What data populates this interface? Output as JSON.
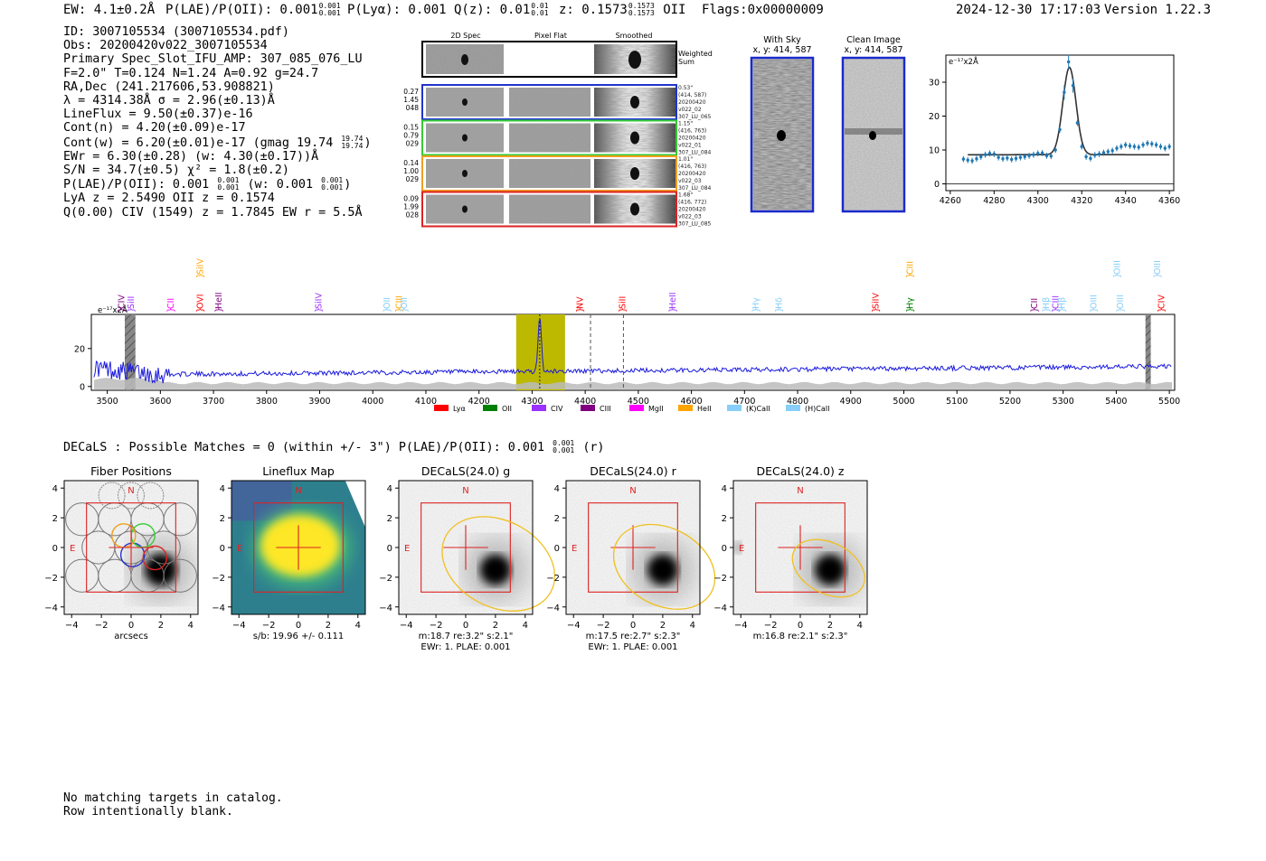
{
  "header": {
    "ew": "EW: 4.1±0.2Å",
    "plae_label": "P(LAE)/P(OII): 0.001",
    "plae_sup": "0.001",
    "plae_sub": "0.001",
    "plya": "P(Lyα): 0.001",
    "qz_label": "Q(z): 0.01",
    "qz_sup": "0.01",
    "qz_sub": "0.01",
    "z_label": "z: 0.1573",
    "z_sup": "0.1573",
    "z_sub": "0.1573",
    "z_line": "OII",
    "flags": "Flags:0x00000009",
    "timestamp": "2024-12-30 17:17:03",
    "version": "Version 1.22.3"
  },
  "info": {
    "id": "ID: 3007105534 (3007105534.pdf)",
    "obs": "Obs: 20200420v022_3007105534",
    "primary": "Primary Spec_Slot_IFU_AMP: 307_085_076_LU",
    "params": "F=2.0\"  T=0.124  N=1.24  A=0.92  g=24.7",
    "radec": "RA,Dec (241.217606,53.908821)",
    "lambda": "λ = 4314.38Å  σ = 2.96(±0.13)Å",
    "lineflux": "LineFlux = 9.50(±0.37)e-16",
    "contn": "Cont(n) = 4.20(±0.09)e-17",
    "contw": "Cont(w) = 6.20(±0.01)e-17 (gmag 19.74",
    "contw_sup": "19.74",
    "contw_sub": "19.74",
    "contw_end": ")",
    "ewr": "EWr = 6.30(±0.28) (w: 4.30(±0.17))Å",
    "sn": "S/N = 34.7(±0.5)  χ² = 1.8(±0.2)",
    "plae_a": "P(LAE)/P(OII): 0.001",
    "plae_a_sup": "0.001",
    "plae_a_sub": "0.001",
    "plae_b": "(w: 0.001",
    "plae_b_sup": "0.001",
    "plae_b_sub": "0.001",
    "plae_end": ")",
    "lya": "LyA z = 2.5490  OII z = 0.1574",
    "civ": "Q(0.00) CIV (1549) z = 1.7845  EW r = 5.5Å"
  },
  "cutouts": {
    "col_labels": [
      "2D Spec",
      "Pixel Flat",
      "Smoothed"
    ],
    "weighted_sum": [
      "Weighted",
      "Sum"
    ],
    "rows": [
      {
        "left": [
          "0.27",
          "1.45",
          "048"
        ],
        "right": [
          "0.53\"",
          "(414, 587)",
          "20200420",
          "v022_02",
          "307_LU_065"
        ],
        "color": "#2233cc"
      },
      {
        "left": [
          "0.15",
          "0.79",
          "029"
        ],
        "right": [
          "1.15\"",
          "(416, 763)",
          "20200420",
          "v022_01",
          "307_LU_084"
        ],
        "color": "#33cc33"
      },
      {
        "left": [
          "0.14",
          "1.00",
          "029"
        ],
        "right": [
          "1.01\"",
          "(416, 763)",
          "20200420",
          "v022_03",
          "307_LU_084"
        ],
        "color": "#f0a020"
      },
      {
        "left": [
          "0.09",
          "1.99",
          "028"
        ],
        "right": [
          "1.68\"",
          "(416, 772)",
          "20200420",
          "v022_03",
          "307_LU_085"
        ],
        "color": "#dd2222"
      }
    ],
    "with_sky": [
      "With Sky",
      "x, y: 414, 587"
    ],
    "clean": [
      "Clean Image",
      "x, y: 414, 587"
    ]
  },
  "chart_data": [
    {
      "type": "line",
      "title": "",
      "ylabel": "e⁻¹⁷x2Å",
      "xlim": [
        4258,
        4362
      ],
      "ylim": [
        -2,
        38
      ],
      "xticks": [
        4260,
        4280,
        4300,
        4320,
        4340,
        4360
      ],
      "yticks": [
        0,
        10,
        20,
        30
      ],
      "data_points": {
        "x": [
          4266,
          4268,
          4270,
          4272,
          4274,
          4276,
          4278,
          4280,
          4282,
          4284,
          4286,
          4288,
          4290,
          4292,
          4294,
          4296,
          4298,
          4300,
          4302,
          4304,
          4306,
          4308,
          4310,
          4312,
          4314,
          4316,
          4318,
          4320,
          4322,
          4324,
          4326,
          4328,
          4330,
          4332,
          4334,
          4336,
          4338,
          4340,
          4342,
          4344,
          4346,
          4348,
          4350,
          4352,
          4354,
          4356,
          4358,
          4360
        ],
        "y": [
          7.3,
          7,
          6.8,
          7.4,
          8,
          8.6,
          9,
          8.8,
          7.8,
          7.4,
          7.6,
          7.2,
          7.5,
          7.8,
          8,
          8.3,
          8.6,
          9,
          9.1,
          8.3,
          8.2,
          10,
          16,
          27,
          36,
          29,
          18,
          11,
          8,
          7.5,
          8.5,
          8.8,
          9.2,
          9.5,
          9.8,
          10.5,
          11,
          11.5,
          11.2,
          11,
          10.8,
          11.5,
          12,
          11.8,
          11.5,
          11,
          10.5,
          11
        ]
      },
      "fit_model": {
        "center": 4314.38,
        "sigma": 2.96,
        "peak": 34.4,
        "baseline": 8.6,
        "x_range": [
          4268,
          4360
        ]
      }
    },
    {
      "type": "line",
      "title": "",
      "ylabel": "e⁻¹⁷x2Å",
      "xlim": [
        3470,
        5510
      ],
      "ylim": [
        -2,
        38
      ],
      "xticks": [
        3500,
        3600,
        3700,
        3800,
        3900,
        4000,
        4100,
        4200,
        4300,
        4400,
        4500,
        4600,
        4700,
        4800,
        4900,
        5000,
        5100,
        5200,
        5300,
        5400,
        5500
      ],
      "yticks": [
        0,
        20
      ],
      "highlight_band": [
        4270,
        4362
      ],
      "observed_line": 4314.38,
      "dashed_lines": [
        4410,
        4472
      ],
      "masked_regions": [
        [
          3533,
          3553
        ],
        [
          5455,
          5465
        ]
      ],
      "continuum_level": 7.3,
      "legend": [
        "Lyα",
        "OII",
        "CIV",
        "CIII",
        "MgII",
        "HeII",
        "(K)CaII",
        "(H)CaII"
      ],
      "legend_colors": [
        "#ff0000",
        "#008000",
        "#9b30ff",
        "#800080",
        "#ff00ff",
        "#ffa500",
        "#87cefa",
        "#87cefa"
      ],
      "line_labels": [
        {
          "name": "CIV",
          "wave": 3527,
          "row": 1,
          "color": "#800080"
        },
        {
          "name": "SiII",
          "wave": 3545,
          "row": 1,
          "color": "#9b30ff"
        },
        {
          "name": "CII",
          "wave": 3620,
          "row": 1,
          "color": "#ff00ff"
        },
        {
          "name": "SiIV",
          "wave": 3675,
          "row": 0,
          "color": "#ffa500"
        },
        {
          "name": "OVI",
          "wave": 3675,
          "row": 1,
          "color": "#ff0000"
        },
        {
          "name": "HeII",
          "wave": 3710,
          "row": 1,
          "color": "#800080"
        },
        {
          "name": "SiIV",
          "wave": 3898,
          "row": 1,
          "color": "#9b30ff"
        },
        {
          "name": "OII",
          "wave": 4027,
          "row": 1,
          "color": "#87cefa"
        },
        {
          "name": "CIII",
          "wave": 4050,
          "row": 1,
          "color": "#ffa500"
        },
        {
          "name": "OII",
          "wave": 4059,
          "row": 1,
          "color": "#87cefa"
        },
        {
          "name": "NV",
          "wave": 4390,
          "row": 1,
          "color": "#ff0000"
        },
        {
          "name": "SiII",
          "wave": 4470,
          "row": 1,
          "color": "#ff0000"
        },
        {
          "name": "HeII",
          "wave": 4565,
          "row": 1,
          "color": "#9b30ff"
        },
        {
          "name": "Hγ",
          "wave": 4722,
          "row": 1,
          "color": "#87cefa"
        },
        {
          "name": "Hδ",
          "wave": 4765,
          "row": 1,
          "color": "#87cefa"
        },
        {
          "name": "SiIV",
          "wave": 4947,
          "row": 1,
          "color": "#ff0000"
        },
        {
          "name": "CIII",
          "wave": 5012,
          "row": 0,
          "color": "#ffa500"
        },
        {
          "name": "Hγ",
          "wave": 5012,
          "row": 1,
          "color": "#008000"
        },
        {
          "name": "CII",
          "wave": 5246,
          "row": 1,
          "color": "#800080"
        },
        {
          "name": "Hβ",
          "wave": 5268,
          "row": 1,
          "color": "#87cefa"
        },
        {
          "name": "CIII",
          "wave": 5286,
          "row": 1,
          "color": "#9b30ff"
        },
        {
          "name": "Hβ",
          "wave": 5298,
          "row": 1,
          "color": "#87cefa"
        },
        {
          "name": "OIII",
          "wave": 5358,
          "row": 1,
          "color": "#87cefa"
        },
        {
          "name": "OIII",
          "wave": 5402,
          "row": 0,
          "color": "#87cefa"
        },
        {
          "name": "OIII",
          "wave": 5408,
          "row": 1,
          "color": "#87cefa"
        },
        {
          "name": "OIII",
          "wave": 5478,
          "row": 0,
          "color": "#87cefa"
        },
        {
          "name": "CIV",
          "wave": 5485,
          "row": 1,
          "color": "#ff0000"
        }
      ]
    }
  ],
  "decals": {
    "summary_a": "DECaLS : Possible Matches = 0 (within +/- 3\")  P(LAE)/P(OII): 0.001",
    "summary_sup": "0.001",
    "summary_sub": "0.001",
    "summary_end": "(r)",
    "compass_n": "N",
    "compass_e": "E",
    "axis_ticks": [
      "4",
      "2",
      "0",
      "−2",
      "−4"
    ],
    "x_ticks": [
      "−4",
      "−2",
      "0",
      "2",
      "4"
    ],
    "panels": [
      {
        "title": "Fiber Positions",
        "caption1": "arcsecs",
        "caption2": ""
      },
      {
        "title": "Lineflux Map",
        "caption1": "s/b: 19.96 +/- 0.111",
        "caption2": ""
      },
      {
        "title": "DECaLS(24.0) g",
        "caption1": "m:18.7  re:3.2\"  s:2.1\"",
        "caption2": "EWr: 1. PLAE: 0.001"
      },
      {
        "title": "DECaLS(24.0) r",
        "caption1": "m:17.5  re:2.7\"  s:2.3\"",
        "caption2": "EWr: 1. PLAE: 0.001"
      },
      {
        "title": "DECaLS(24.0) z",
        "caption1": "m:16.8  re:2.1\"  s:2.3\"",
        "caption2": ""
      }
    ]
  },
  "footer": {
    "line1": "No matching targets in catalog.",
    "line2": "Row intentionally blank."
  }
}
